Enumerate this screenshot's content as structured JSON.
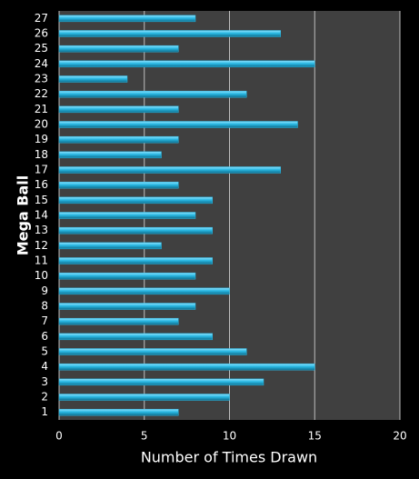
{
  "chart_data": {
    "type": "hbar",
    "xlabel": "Number of Times Drawn",
    "ylabel": "Mega Ball",
    "categories": [
      "1",
      "2",
      "3",
      "4",
      "5",
      "6",
      "7",
      "8",
      "9",
      "10",
      "11",
      "12",
      "13",
      "14",
      "15",
      "16",
      "17",
      "18",
      "19",
      "20",
      "21",
      "22",
      "23",
      "24",
      "25",
      "26",
      "27"
    ],
    "values": [
      7,
      10,
      12,
      15,
      11,
      9,
      7,
      8,
      10,
      8,
      9,
      6,
      9,
      8,
      9,
      7,
      13,
      6,
      7,
      14,
      7,
      11,
      4,
      15,
      7,
      13,
      8
    ],
    "color": "#29b8e3",
    "xlim": [
      0,
      20
    ],
    "xticks": [
      0,
      5,
      10,
      15,
      20
    ],
    "grid": true
  }
}
